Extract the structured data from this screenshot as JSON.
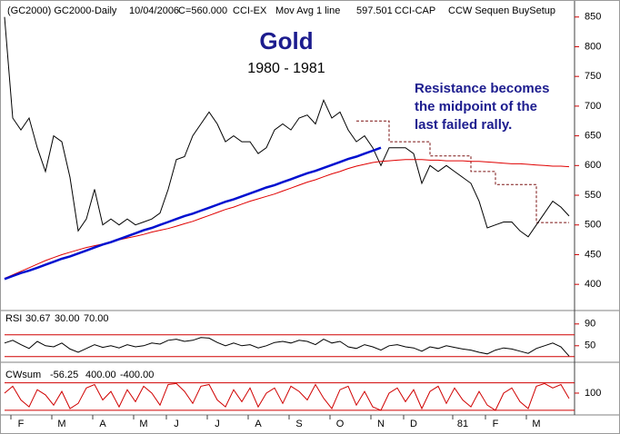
{
  "header": [
    "(GC2000) GC2000-Daily",
    "10/04/2006",
    "C=560.000",
    "CCI-EX",
    "Mov Avg 1 line",
    "597.501",
    "CCI-CAP",
    "CCW Sequen BuySetup"
  ],
  "header_colors": [
    "#000000",
    "#000000",
    "#d00000",
    "#000000",
    "#000000",
    "#d00000",
    "#000000",
    "#000000"
  ],
  "chart_data": [
    {
      "type": "line",
      "title": "Gold",
      "subtitle": "1980 - 1981",
      "annotation": [
        "Resistance becomes",
        "the midpoint of the",
        "last failed rally."
      ],
      "categories": [
        null,
        null,
        "F",
        null,
        null,
        null,
        null,
        "M",
        null,
        null,
        null,
        null,
        "A",
        null,
        null,
        null,
        null,
        "M",
        null,
        null,
        null,
        "J",
        null,
        null,
        null,
        null,
        "J",
        null,
        null,
        null,
        null,
        "A",
        null,
        null,
        null,
        null,
        "S",
        null,
        null,
        null,
        null,
        "O",
        null,
        null,
        null,
        null,
        "N",
        null,
        null,
        null,
        "D",
        null,
        null,
        null,
        null,
        null,
        "81",
        null,
        null,
        null,
        "F",
        null,
        null,
        null,
        null,
        "M",
        null,
        null,
        null,
        null
      ],
      "series": [
        {
          "color": "#000000",
          "values": [
            850,
            680,
            660,
            680,
            630,
            590,
            650,
            640,
            580,
            490,
            510,
            560,
            500,
            510,
            500,
            510,
            500,
            505,
            510,
            520,
            560,
            610,
            615,
            650,
            670,
            690,
            670,
            640,
            650,
            640,
            640,
            620,
            630,
            660,
            670,
            660,
            680,
            685,
            670,
            710,
            680,
            690,
            660,
            640,
            650,
            630,
            600,
            630,
            630,
            630,
            620,
            570,
            600,
            590,
            600,
            590,
            580,
            570,
            540,
            495,
            500,
            505,
            505,
            490,
            480,
            500,
            520,
            540,
            530,
            515
          ]
        },
        {
          "color": "#e00000",
          "values": [
            410,
            416,
            422,
            428,
            434,
            440,
            445,
            450,
            454,
            458,
            462,
            465,
            468,
            472,
            475,
            478,
            481,
            484,
            488,
            491,
            494,
            498,
            502,
            506,
            511,
            516,
            521,
            526,
            530,
            535,
            540,
            544,
            548,
            552,
            557,
            562,
            567,
            572,
            576,
            581,
            586,
            590,
            595,
            599,
            602,
            605,
            607,
            608,
            609,
            610,
            610,
            610,
            609,
            609,
            608,
            608,
            608,
            607,
            607,
            606,
            605,
            604,
            603,
            603,
            602,
            601,
            600,
            599,
            599,
            598
          ]
        },
        {
          "color": "#0010d0",
          "values": [
            409,
            414,
            419,
            423,
            428,
            433,
            438,
            443,
            447,
            452,
            457,
            462,
            467,
            471,
            476,
            481,
            486,
            491,
            495,
            500,
            505,
            510,
            515,
            519,
            524,
            529,
            534,
            539,
            543,
            548,
            553,
            558,
            563,
            567,
            572,
            577,
            582,
            587,
            591,
            596,
            601,
            606,
            611,
            615,
            620,
            625,
            630,
            null,
            null,
            null,
            null,
            null,
            null,
            null,
            null,
            null,
            null,
            null,
            null,
            null,
            null,
            null,
            null,
            null,
            null,
            null,
            null,
            null,
            null,
            null
          ]
        }
      ],
      "resistance": {
        "color": "#7a1010",
        "values": [
          null,
          null,
          null,
          null,
          null,
          null,
          null,
          null,
          null,
          null,
          null,
          null,
          null,
          null,
          null,
          null,
          null,
          null,
          null,
          null,
          null,
          null,
          null,
          null,
          null,
          null,
          null,
          null,
          null,
          null,
          null,
          null,
          null,
          null,
          null,
          null,
          null,
          null,
          null,
          null,
          null,
          null,
          null,
          675,
          675,
          675,
          675,
          640,
          640,
          640,
          640,
          640,
          616,
          616,
          616,
          616,
          616,
          590,
          590,
          590,
          568,
          568,
          568,
          568,
          568,
          504,
          504,
          504,
          504,
          null
        ]
      },
      "ylim": [
        359,
        871
      ],
      "yticks": [
        400,
        450,
        500,
        550,
        600,
        650,
        700,
        750,
        800,
        850
      ]
    },
    {
      "type": "line",
      "name": "RSI",
      "last": 30.67,
      "last_color": "#d00000",
      "color": "#000000",
      "levels": [
        {
          "value": 30,
          "label": "30.00",
          "color": "#d00000"
        },
        {
          "value": 70,
          "label": "70.00",
          "color": "#d00000"
        }
      ],
      "values": [
        55,
        60,
        52,
        45,
        58,
        50,
        48,
        55,
        44,
        38,
        45,
        52,
        47,
        50,
        46,
        52,
        48,
        50,
        55,
        53,
        60,
        62,
        58,
        60,
        65,
        64,
        56,
        50,
        55,
        50,
        52,
        46,
        50,
        56,
        58,
        55,
        60,
        58,
        52,
        62,
        55,
        58,
        48,
        45,
        52,
        48,
        42,
        50,
        52,
        48,
        46,
        40,
        48,
        45,
        50,
        47,
        44,
        42,
        38,
        35,
        42,
        46,
        44,
        40,
        36,
        45,
        50,
        55,
        48,
        31
      ],
      "ylim": [
        23,
        113
      ],
      "yticks": [
        50,
        90
      ]
    },
    {
      "type": "line",
      "name": "CWsum",
      "last": -56.25,
      "last_color": "#d00000",
      "color": "#d00000",
      "levels": [
        {
          "value": 400,
          "label": "400.00",
          "color": "#1010d0"
        },
        {
          "value": -400,
          "label": "-400.00",
          "color": "#008080"
        }
      ],
      "values": [
        100,
        300,
        -100,
        -300,
        200,
        50,
        -250,
        150,
        -350,
        -200,
        250,
        350,
        -100,
        150,
        -300,
        200,
        -150,
        300,
        100,
        -250,
        350,
        380,
        150,
        -200,
        300,
        350,
        -100,
        -300,
        200,
        -150,
        250,
        -300,
        100,
        250,
        -200,
        300,
        150,
        -100,
        350,
        -50,
        -350,
        200,
        300,
        -250,
        150,
        -300,
        -400,
        100,
        250,
        -150,
        200,
        -350,
        150,
        300,
        -200,
        250,
        -100,
        -300,
        150,
        -250,
        -400,
        100,
        250,
        -150,
        -350,
        300,
        380,
        250,
        350,
        -56
      ],
      "ylim": [
        -536,
        946
      ],
      "yticks": [
        100
      ]
    }
  ]
}
